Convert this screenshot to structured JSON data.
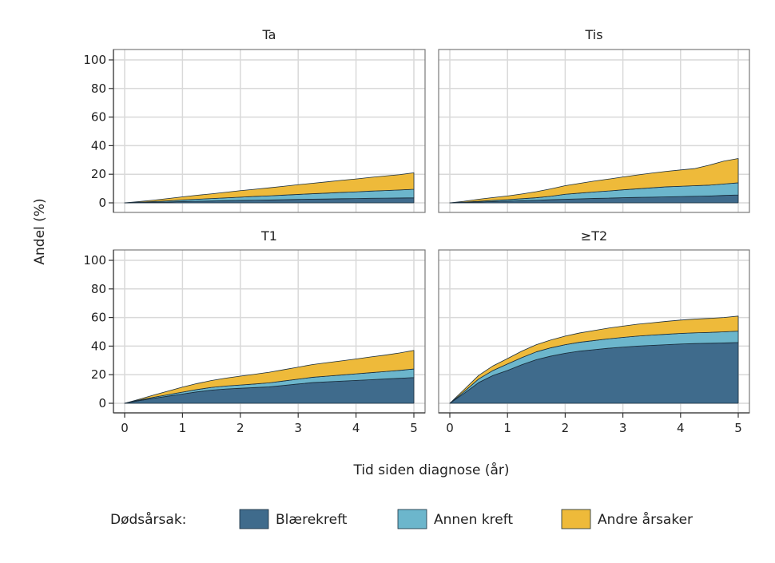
{
  "chart_data": {
    "type": "area",
    "stacked": true,
    "xlabel": "Tid siden diagnose (år)",
    "ylabel": "Andel (%)",
    "xlim": [
      0,
      5
    ],
    "ylim": [
      0,
      100
    ],
    "xticks": [
      0,
      1,
      2,
      3,
      4,
      5
    ],
    "yticks": [
      0,
      20,
      40,
      60,
      80,
      100
    ],
    "grid": true,
    "legend": {
      "position": "bottom",
      "title": "Dødsårsak:",
      "entries": [
        {
          "name": "Blærekreft",
          "color": "#3f6b8c"
        },
        {
          "name": "Annen kreft",
          "color": "#6cb6cc"
        },
        {
          "name": "Andre årsaker",
          "color": "#eeba3a"
        }
      ]
    },
    "x": [
      0,
      0.25,
      0.5,
      0.75,
      1,
      1.25,
      1.5,
      1.75,
      2,
      2.25,
      2.5,
      2.75,
      3,
      3.25,
      3.5,
      3.75,
      4,
      4.25,
      4.5,
      4.75,
      5
    ],
    "panels": [
      {
        "title": "Ta",
        "series": [
          {
            "name": "Blærekreft",
            "values": [
              0,
              0.2,
              0.4,
              0.6,
              0.9,
              1.1,
              1.3,
              1.5,
              1.7,
              1.9,
              2.0,
              2.2,
              2.4,
              2.6,
              2.7,
              2.9,
              3.0,
              3.2,
              3.3,
              3.4,
              3.5
            ]
          },
          {
            "name": "Annen kreft",
            "values": [
              0,
              0.2,
              0.5,
              0.8,
              1.1,
              1.4,
              1.7,
              2.0,
              2.3,
              2.6,
              2.9,
              3.2,
              3.5,
              3.8,
              4.1,
              4.4,
              4.7,
              5.0,
              5.3,
              5.6,
              6.0
            ]
          },
          {
            "name": "Andre årsaker",
            "values": [
              0,
              0.5,
              1.0,
              1.6,
              2.2,
              2.8,
              3.3,
              3.9,
              4.5,
              5.0,
              5.6,
              6.2,
              6.8,
              7.3,
              7.9,
              8.5,
              9.0,
              9.6,
              10.2,
              10.7,
              11.5
            ]
          }
        ]
      },
      {
        "title": "Tis",
        "series": [
          {
            "name": "Blærekreft",
            "values": [
              0,
              0.3,
              0.6,
              0.9,
              1.2,
              1.5,
              1.8,
              2.2,
              2.5,
              2.8,
              3.1,
              3.3,
              3.6,
              3.8,
              4.0,
              4.2,
              4.4,
              4.6,
              4.8,
              5.2,
              5.5
            ]
          },
          {
            "name": "Annen kreft",
            "values": [
              0,
              0.2,
              0.5,
              0.8,
              1.0,
              1.4,
              1.8,
              2.4,
              3.5,
              4.0,
              4.5,
              5.0,
              5.5,
              6.0,
              6.5,
              7.0,
              7.2,
              7.4,
              7.6,
              8.0,
              8.5
            ]
          },
          {
            "name": "Andre årsaker",
            "values": [
              0,
              0.6,
              1.4,
              2.0,
              2.6,
              3.3,
              4.2,
              5.2,
              6.0,
              6.8,
              7.6,
              8.3,
              9.0,
              9.7,
              10.3,
              10.8,
              11.4,
              12.0,
              14.0,
              16.0,
              17.0
            ]
          }
        ]
      },
      {
        "title": "T1",
        "series": [
          {
            "name": "Blærekreft",
            "values": [
              0,
              1.8,
              3.5,
              5.0,
              6.5,
              8.0,
              9.2,
              10.0,
              10.5,
              11.0,
              11.5,
              12.5,
              13.5,
              14.5,
              15.0,
              15.5,
              16.0,
              16.5,
              17.0,
              17.5,
              18.0
            ]
          },
          {
            "name": "Annen kreft",
            "values": [
              0,
              0.4,
              0.7,
              1.0,
              1.3,
              1.6,
              1.9,
              2.1,
              2.3,
              2.5,
              2.8,
              3.1,
              3.4,
              3.7,
              4.0,
              4.3,
              4.6,
              4.9,
              5.2,
              5.5,
              6.0
            ]
          },
          {
            "name": "Andre årsaker",
            "values": [
              0,
              0.6,
              1.5,
              2.5,
              3.5,
              4.2,
              4.8,
              5.5,
              6.2,
              6.8,
              7.4,
              7.9,
              8.4,
              8.9,
              9.4,
              9.9,
              10.4,
              11.0,
              11.5,
              12.2,
              13.0
            ]
          }
        ]
      },
      {
        "title": "≥T2",
        "series": [
          {
            "name": "Blærekreft",
            "values": [
              0,
              7.0,
              14.5,
              19.5,
              23.0,
              27.0,
              30.5,
              33.0,
              35.0,
              36.5,
              37.5,
              38.5,
              39.3,
              40.0,
              40.5,
              41.0,
              41.5,
              41.8,
              42.0,
              42.2,
              42.5
            ]
          },
          {
            "name": "Annen kreft",
            "values": [
              0,
              1.2,
              2.5,
              3.5,
              4.5,
              5.0,
              5.5,
              5.8,
              6.0,
              6.2,
              6.4,
              6.6,
              6.8,
              7.0,
              7.2,
              7.3,
              7.4,
              7.5,
              7.6,
              7.8,
              8.0
            ]
          },
          {
            "name": "Andre årsaker",
            "values": [
              0,
              1.5,
              2.5,
              3.2,
              3.8,
              4.5,
              5.0,
              5.5,
              6.0,
              6.5,
              7.0,
              7.5,
              7.9,
              8.3,
              8.6,
              9.0,
              9.3,
              9.6,
              9.8,
              10.0,
              10.5
            ]
          }
        ]
      }
    ]
  }
}
